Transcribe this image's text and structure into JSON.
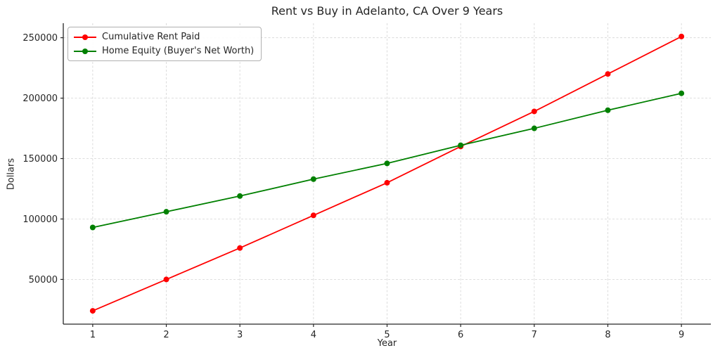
{
  "chart_data": {
    "type": "line",
    "title": "Rent vs Buy in Adelanto, CA Over 9 Years",
    "xlabel": "Year",
    "ylabel": "Dollars",
    "x": [
      1,
      2,
      3,
      4,
      5,
      6,
      7,
      8,
      9
    ],
    "x_tick_labels": [
      "1",
      "2",
      "3",
      "4",
      "5",
      "6",
      "7",
      "8",
      "9"
    ],
    "y_ticks": [
      50000,
      100000,
      150000,
      200000,
      250000
    ],
    "xlim": [
      0.6,
      9.4
    ],
    "ylim": [
      13000,
      262000
    ],
    "grid": true,
    "legend_position": "upper-left",
    "series": [
      {
        "name": "Cumulative Rent Paid",
        "color": "#ff0000",
        "marker": "circle",
        "values": [
          24000,
          50000,
          76000,
          103000,
          130000,
          160000,
          189000,
          220000,
          251000
        ]
      },
      {
        "name": "Home Equity (Buyer's Net Worth)",
        "color": "#008000",
        "marker": "circle",
        "values": [
          93000,
          106000,
          119000,
          133000,
          146000,
          161000,
          175000,
          190000,
          204000
        ]
      }
    ]
  },
  "style": {
    "background": "#ffffff",
    "grid_color": "#d9d9d9",
    "spine_color": "#262626",
    "tick_text_color": "#262626",
    "legend_border_color": "#b0b0b0"
  }
}
